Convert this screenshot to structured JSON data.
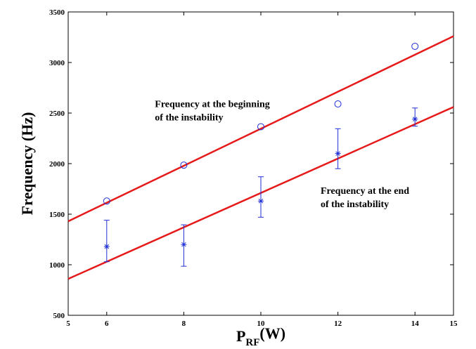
{
  "chart_data": {
    "type": "scatter",
    "title": "",
    "xlabel": {
      "main": "P",
      "subscript": "RF",
      "unit": "(W)"
    },
    "ylabel": "Frequency (Hz)",
    "xlim": [
      5,
      15
    ],
    "ylim": [
      500,
      3500
    ],
    "xticks": [
      5,
      6,
      8,
      10,
      12,
      14,
      15
    ],
    "yticks": [
      500,
      1000,
      1500,
      2000,
      2500,
      3000,
      3500
    ],
    "grid": false,
    "series": [
      {
        "marker": "circle",
        "color": "#1f2fd6",
        "points": [
          {
            "x": 6,
            "y": 1630
          },
          {
            "x": 8,
            "y": 1985
          },
          {
            "x": 10,
            "y": 2365
          },
          {
            "x": 12,
            "y": 2590
          },
          {
            "x": 14,
            "y": 3160
          }
        ],
        "fit_line": {
          "color": "#e61a1a",
          "x": [
            5,
            15
          ],
          "y": [
            1430,
            3260
          ]
        }
      },
      {
        "marker": "asterisk",
        "color": "#1f2fd6",
        "points": [
          {
            "x": 6,
            "y": 1180,
            "err_low": 1030,
            "err_high": 1440
          },
          {
            "x": 8,
            "y": 1200,
            "err_low": 985,
            "err_high": 1395
          },
          {
            "x": 10,
            "y": 1630,
            "err_low": 1470,
            "err_high": 1870
          },
          {
            "x": 12,
            "y": 2100,
            "err_low": 1950,
            "err_high": 2345
          },
          {
            "x": 14,
            "y": 2440,
            "err_low": 2370,
            "err_high": 2550
          }
        ],
        "fit_line": {
          "color": "#e61a1a",
          "x": [
            5,
            15
          ],
          "y": [
            860,
            2560
          ]
        }
      }
    ],
    "annotations": [
      {
        "lines": [
          "Frequency at the beginning",
          "of the instability"
        ],
        "x": 7.25,
        "y": 2560
      },
      {
        "lines": [
          "Frequency at the end",
          "of the instability"
        ],
        "x": 11.55,
        "y": 1700
      }
    ]
  }
}
